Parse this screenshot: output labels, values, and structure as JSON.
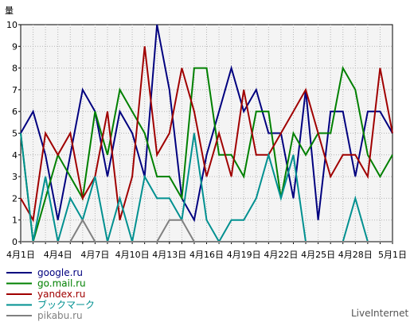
{
  "chart_data": {
    "type": "line",
    "ylabel": "量",
    "ylim": [
      0,
      10
    ],
    "yticks": [
      0,
      1,
      2,
      3,
      4,
      5,
      6,
      7,
      8,
      9,
      10
    ],
    "grid": true,
    "legend_placement": "bottom-left",
    "x_tick_labels": [
      "4月1日",
      "4月4日",
      "4月7日",
      "4月10日",
      "4月13日",
      "4月16日",
      "4月19日",
      "4月22日",
      "4月25日",
      "4月28日",
      "5月1日"
    ],
    "x_tick_indices": [
      0,
      3,
      6,
      9,
      12,
      15,
      18,
      21,
      24,
      27,
      30
    ],
    "series": [
      {
        "name": "google.ru",
        "color": "#00007f",
        "values": [
          5,
          6,
          4,
          1,
          4,
          7,
          6,
          3,
          6,
          5,
          3,
          10,
          7,
          2,
          1,
          4,
          6,
          8,
          6,
          7,
          5,
          5,
          2,
          7,
          1,
          6,
          6,
          3,
          6,
          6,
          5
        ]
      },
      {
        "name": "go.mail.ru",
        "color": "#008000",
        "values": [
          5,
          0,
          2,
          4,
          3,
          2,
          6,
          4,
          7,
          6,
          5,
          3,
          3,
          2,
          8,
          8,
          4,
          4,
          3,
          6,
          6,
          2,
          5,
          4,
          5,
          5,
          8,
          7,
          4,
          3,
          4
        ]
      },
      {
        "name": "yandex.ru",
        "color": "#a00000",
        "values": [
          2,
          1,
          5,
          4,
          5,
          2,
          3,
          6,
          1,
          3,
          9,
          4,
          5,
          8,
          6,
          3,
          5,
          3,
          7,
          4,
          4,
          5,
          6,
          7,
          5,
          3,
          4,
          4,
          3,
          8,
          5
        ]
      },
      {
        "name": "ブックマーク",
        "color": "#009090",
        "values": [
          5,
          0,
          3,
          0,
          2,
          1,
          3,
          0,
          2,
          0,
          3,
          2,
          2,
          1,
          5,
          1,
          0,
          1,
          1,
          2,
          4,
          2,
          4,
          0,
          0,
          0,
          0,
          2,
          0,
          0,
          0
        ]
      },
      {
        "name": "pikabu.ru",
        "color": "#808080",
        "values": [
          0,
          0,
          0,
          0,
          0,
          1,
          0,
          0,
          0,
          0,
          0,
          0,
          1,
          1,
          0,
          0,
          0,
          0,
          0,
          0,
          0,
          0,
          0,
          0,
          0,
          0,
          0,
          0,
          0,
          0,
          0
        ]
      }
    ]
  },
  "watermark": "LiveInternet"
}
